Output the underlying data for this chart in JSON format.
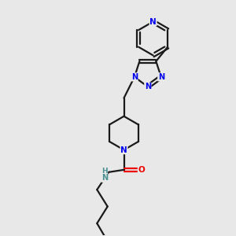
{
  "background_color": "#e8e8e8",
  "bond_color": "#1a1a1a",
  "nitrogen_color": "#0000ee",
  "oxygen_color": "#ee0000",
  "nh_color": "#4a9090",
  "line_width": 1.6,
  "figsize": [
    3.0,
    3.0
  ],
  "dpi": 100,
  "xlim": [
    0,
    10
  ],
  "ylim": [
    0,
    10
  ]
}
